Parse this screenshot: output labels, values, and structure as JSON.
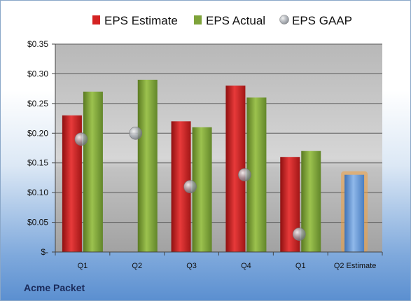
{
  "company": "Acme Packet",
  "colors": {
    "estimate": "#d42222",
    "actual": "#7ea33a",
    "gaap": "#9aa0a8",
    "forecast": "#5f95d6",
    "forecast_glow": "#f0a040"
  },
  "chart_data": {
    "type": "bar",
    "categories": [
      "Q1",
      "Q2",
      "Q3",
      "Q4",
      "Q1",
      "Q2 Estimate"
    ],
    "series": [
      {
        "name": "EPS Estimate",
        "kind": "bar",
        "values": [
          0.23,
          null,
          0.22,
          0.28,
          0.16,
          null
        ]
      },
      {
        "name": "EPS Actual",
        "kind": "bar",
        "values": [
          0.27,
          0.29,
          0.21,
          0.26,
          0.17,
          null
        ]
      },
      {
        "name": "EPS GAAP",
        "kind": "scatter",
        "values": [
          0.19,
          0.2,
          0.11,
          0.13,
          0.03,
          null
        ]
      },
      {
        "name": "",
        "kind": "forecast-bar",
        "values": [
          null,
          null,
          null,
          null,
          null,
          0.13
        ]
      }
    ],
    "ylim": [
      0,
      0.35
    ],
    "yticks": [
      0,
      0.05,
      0.1,
      0.15,
      0.2,
      0.25,
      0.3,
      0.35
    ],
    "ytick_labels": [
      "$-",
      "$0.05",
      "$0.10",
      "$0.15",
      "$0.20",
      "$0.25",
      "$0.30",
      "$0.35"
    ],
    "legend_position": "top",
    "grid": true
  }
}
